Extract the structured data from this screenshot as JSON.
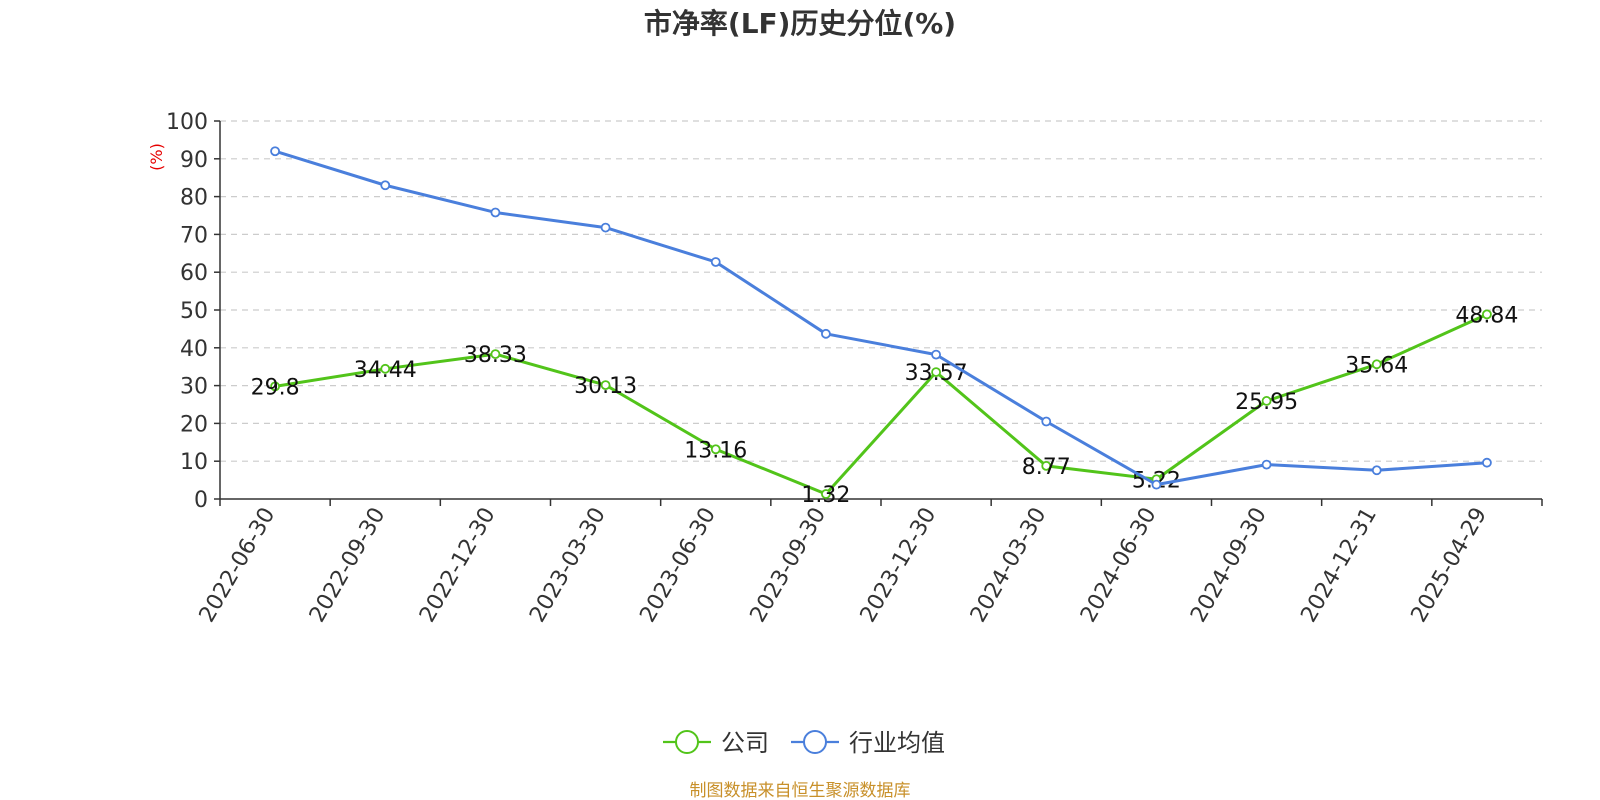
{
  "chart_data": {
    "type": "line",
    "title": "市净率(LF)历史分位(%)",
    "ylabel": "(%)",
    "xlabel": "",
    "ylim": [
      0,
      100
    ],
    "yticks": [
      0,
      10,
      20,
      30,
      40,
      50,
      60,
      70,
      80,
      90,
      100
    ],
    "grid": true,
    "legend_position": "bottom",
    "categories": [
      "2022-06-30",
      "2022-09-30",
      "2022-12-30",
      "2023-03-30",
      "2023-06-30",
      "2023-09-30",
      "2023-12-30",
      "2024-03-30",
      "2024-06-30",
      "2024-09-30",
      "2024-12-31",
      "2025-04-29"
    ],
    "series": [
      {
        "name": "公司",
        "color": "#52c41a",
        "values": [
          29.8,
          34.44,
          38.33,
          30.13,
          13.16,
          1.32,
          33.57,
          8.77,
          5.22,
          25.95,
          35.64,
          48.84
        ],
        "labels": [
          "29.8",
          "34.44",
          "38.33",
          "30.13",
          "13.16",
          "1.32",
          "33.57",
          "8.77",
          "5.22",
          "25.95",
          "35.64",
          "48.84"
        ]
      },
      {
        "name": "行业均值",
        "color": "#4a7fdc",
        "values": [
          92,
          83,
          75.8,
          71.8,
          62.7,
          43.7,
          38.2,
          20.5,
          3.8,
          9.1,
          7.6,
          9.6
        ]
      }
    ]
  },
  "source_text": "制图数据来自恒生聚源数据库",
  "colors": {
    "unit_label": "#e60000",
    "source_text": "#c8902a",
    "axis": "#333333",
    "grid": "#cccccc"
  }
}
